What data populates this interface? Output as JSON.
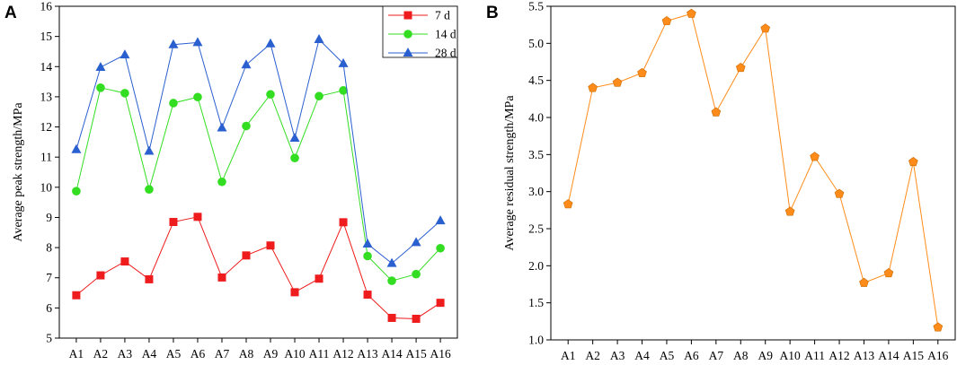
{
  "chart_data": [
    {
      "panel": "A",
      "type": "line",
      "title": "",
      "xlabel": "",
      "ylabel": "Average peak strength/MPa",
      "ylim": [
        5,
        16
      ],
      "yticks": [
        5,
        6,
        7,
        8,
        9,
        10,
        11,
        12,
        13,
        14,
        15,
        16
      ],
      "categories": [
        "A1",
        "A2",
        "A3",
        "A4",
        "A5",
        "A6",
        "A7",
        "A8",
        "A9",
        "A10",
        "A11",
        "A12",
        "A13",
        "A14",
        "A15",
        "A16"
      ],
      "legend_position": "top-right",
      "series": [
        {
          "name": "7 d",
          "color": "#ee1c1c",
          "marker": "square",
          "values": [
            6.42,
            7.08,
            7.54,
            6.95,
            8.85,
            9.02,
            7.01,
            7.74,
            8.07,
            6.52,
            6.97,
            8.84,
            6.44,
            5.67,
            5.64,
            6.17
          ]
        },
        {
          "name": "14 d",
          "color": "#33dd22",
          "marker": "circle",
          "values": [
            9.87,
            13.3,
            13.12,
            9.93,
            12.79,
            12.99,
            10.18,
            12.03,
            13.08,
            10.97,
            13.02,
            13.21,
            7.72,
            6.9,
            7.12,
            7.98
          ]
        },
        {
          "name": "28 d",
          "color": "#2a5fcf",
          "marker": "triangle",
          "values": [
            11.25,
            13.98,
            14.39,
            11.2,
            14.73,
            14.8,
            11.97,
            14.06,
            14.76,
            11.63,
            14.9,
            14.1,
            8.12,
            7.48,
            8.17,
            8.89
          ]
        }
      ]
    },
    {
      "panel": "B",
      "type": "line",
      "title": "",
      "xlabel": "",
      "ylabel": "Average residual strength/MPa",
      "ylim": [
        1.0,
        5.5
      ],
      "yticks": [
        "1.0",
        "1.5",
        "2.0",
        "2.5",
        "3.0",
        "3.5",
        "4.0",
        "4.5",
        "5.0",
        "5.5"
      ],
      "categories": [
        "A1",
        "A2",
        "A3",
        "A4",
        "A5",
        "A6",
        "A7",
        "A8",
        "A9",
        "A10",
        "A11",
        "A12",
        "A13",
        "A14",
        "A15",
        "A16"
      ],
      "series": [
        {
          "name": "Residual strength",
          "color": "#ff8c1a",
          "marker": "pentagon",
          "values": [
            2.83,
            4.4,
            4.47,
            4.6,
            5.3,
            5.4,
            4.07,
            4.67,
            5.2,
            2.73,
            3.47,
            2.97,
            1.77,
            1.9,
            3.4,
            1.17
          ]
        }
      ]
    }
  ]
}
